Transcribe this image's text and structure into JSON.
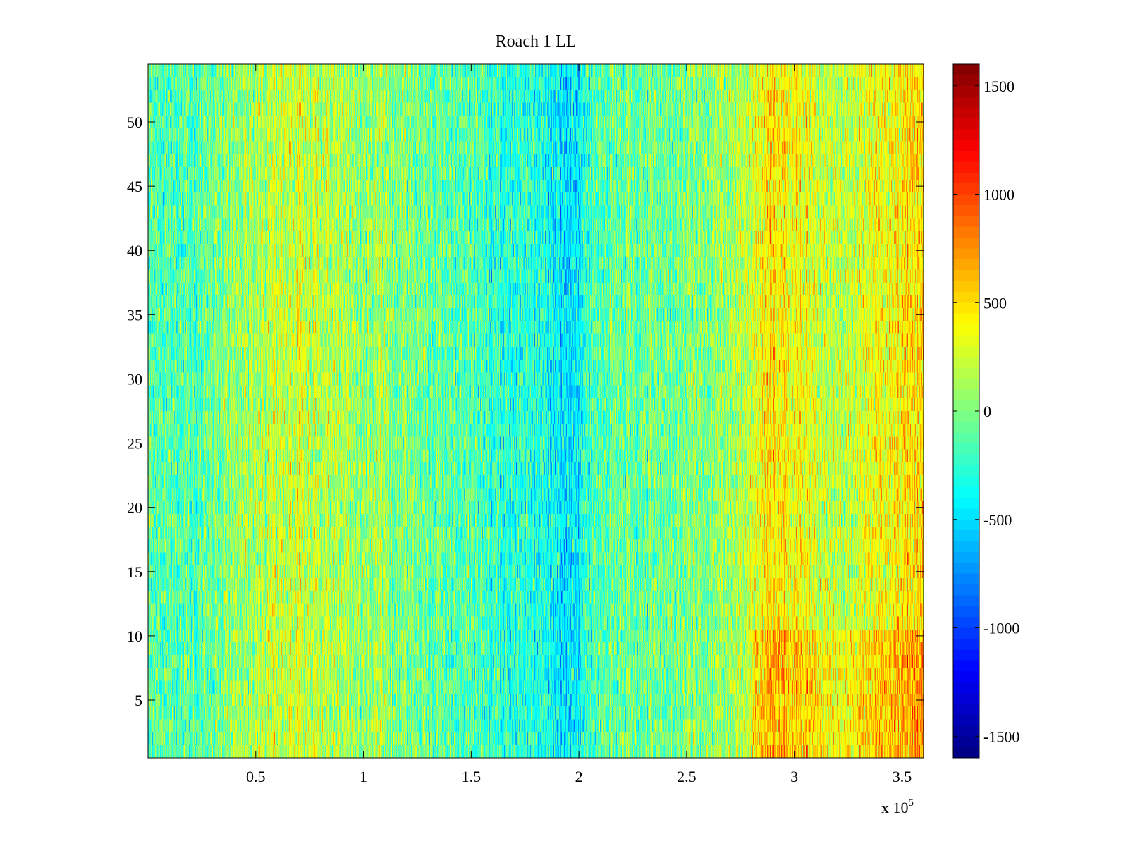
{
  "chart_data": {
    "type": "heatmap",
    "title": "Roach 1 LL",
    "xlabel": "",
    "ylabel": "",
    "x_exponent_label": "x 10",
    "x_exponent_power": "5",
    "xlim": [
      0,
      3.6
    ],
    "ylim": [
      0.5,
      54.5
    ],
    "x_ticks": [
      0.5,
      1,
      1.5,
      2,
      2.5,
      3,
      3.5
    ],
    "x_tick_labels": [
      "0.5",
      "1",
      "1.5",
      "2",
      "2.5",
      "3",
      "3.5"
    ],
    "y_ticks": [
      5,
      10,
      15,
      20,
      25,
      30,
      35,
      40,
      45,
      50
    ],
    "y_tick_labels": [
      "5",
      "10",
      "15",
      "20",
      "25",
      "30",
      "35",
      "40",
      "45",
      "50"
    ],
    "rows": 54,
    "colormap": "jet",
    "colorbar": {
      "range": [
        -1600,
        1600
      ],
      "ticks": [
        1500,
        1000,
        500,
        0,
        -500,
        -1000,
        -1500
      ],
      "tick_labels": [
        "1500",
        "1000",
        "500",
        "0",
        "-500",
        "-1000",
        "-1500"
      ]
    },
    "column_profile": [
      {
        "x": 0.0,
        "value": -150
      },
      {
        "x": 0.25,
        "value": -100
      },
      {
        "x": 0.5,
        "value": 150
      },
      {
        "x": 0.7,
        "value": 250
      },
      {
        "x": 1.0,
        "value": 100
      },
      {
        "x": 1.5,
        "value": -150
      },
      {
        "x": 1.8,
        "value": -300
      },
      {
        "x": 1.95,
        "value": -500
      },
      {
        "x": 2.1,
        "value": -100
      },
      {
        "x": 2.5,
        "value": 0
      },
      {
        "x": 2.75,
        "value": 150
      },
      {
        "x": 2.9,
        "value": 500
      },
      {
        "x": 3.0,
        "value": 400
      },
      {
        "x": 3.2,
        "value": 150
      },
      {
        "x": 3.45,
        "value": 400
      },
      {
        "x": 3.6,
        "value": 500
      }
    ],
    "grid": false,
    "legend": "none"
  }
}
